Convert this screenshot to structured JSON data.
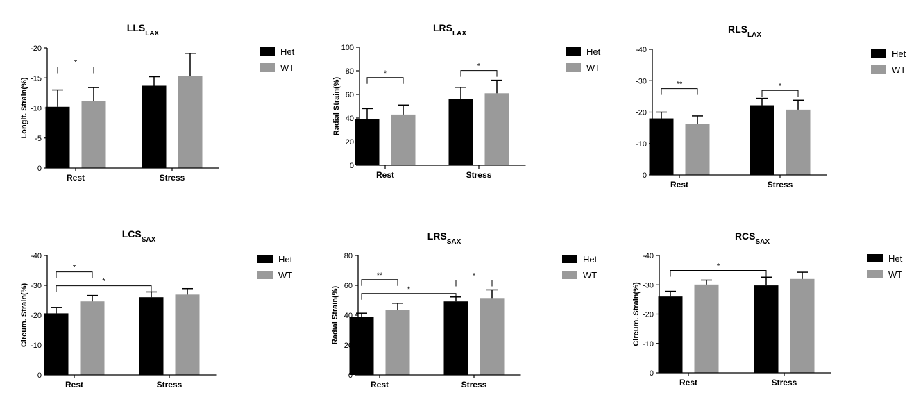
{
  "colors": {
    "het": "#000000",
    "wt": "#9a9a9a",
    "axis": "#000000"
  },
  "chart_data": [
    {
      "type": "bar",
      "title": "LLS",
      "title_sub": "LAX",
      "ylabel": "Longit. Strain(%)",
      "categories": [
        "Rest",
        "Stress"
      ],
      "ylim": [
        0,
        20
      ],
      "yticks": [
        0,
        5,
        10,
        15,
        20
      ],
      "tick_prefix": "-",
      "series": [
        {
          "name": "Het",
          "values": [
            10.2,
            13.7
          ],
          "errors": [
            2.8,
            1.5
          ]
        },
        {
          "name": "WT",
          "values": [
            11.2,
            15.3
          ],
          "errors": [
            2.2,
            3.8
          ]
        }
      ],
      "significance": [
        {
          "from": [
            0,
            0
          ],
          "to": [
            1,
            0
          ],
          "label": "*"
        }
      ]
    },
    {
      "type": "bar",
      "title": "LRS",
      "title_sub": "LAX",
      "ylabel": "Radial Strain(%)",
      "categories": [
        "Rest",
        "Stress"
      ],
      "ylim": [
        0,
        100
      ],
      "yticks": [
        0,
        20,
        40,
        60,
        80,
        100
      ],
      "tick_prefix": "",
      "series": [
        {
          "name": "Het",
          "values": [
            39,
            56
          ],
          "errors": [
            9,
            10
          ]
        },
        {
          "name": "WT",
          "values": [
            43,
            61
          ],
          "errors": [
            8,
            11
          ]
        }
      ],
      "significance": [
        {
          "from": [
            0,
            0
          ],
          "to": [
            1,
            0
          ],
          "label": "*"
        },
        {
          "from": [
            0,
            1
          ],
          "to": [
            1,
            1
          ],
          "label": "*"
        }
      ]
    },
    {
      "type": "bar",
      "title": "RLS",
      "title_sub": "LAX",
      "ylabel": "",
      "categories": [
        "Rest",
        "Stress"
      ],
      "ylim": [
        0,
        40
      ],
      "yticks": [
        0,
        10,
        20,
        30,
        40
      ],
      "tick_prefix": "-",
      "series": [
        {
          "name": "Het",
          "values": [
            18.0,
            22.2
          ],
          "errors": [
            2.0,
            2.2
          ]
        },
        {
          "name": "WT",
          "values": [
            16.3,
            20.8
          ],
          "errors": [
            2.5,
            3.0
          ]
        }
      ],
      "significance": [
        {
          "from": [
            0,
            0
          ],
          "to": [
            1,
            0
          ],
          "label": "**"
        },
        {
          "from": [
            0,
            1
          ],
          "to": [
            1,
            1
          ],
          "label": "*"
        }
      ]
    },
    {
      "type": "bar",
      "title": "LCS",
      "title_sub": "SAX",
      "ylabel": "Circum. Strain(%)",
      "categories": [
        "Rest",
        "Stress"
      ],
      "ylim": [
        0,
        40
      ],
      "yticks": [
        0,
        10,
        20,
        30,
        40
      ],
      "tick_prefix": "-",
      "series": [
        {
          "name": "Het",
          "values": [
            20.6,
            26.0
          ],
          "errors": [
            2.0,
            1.8
          ]
        },
        {
          "name": "WT",
          "values": [
            24.6,
            26.9
          ],
          "errors": [
            2.0,
            2.0
          ]
        }
      ],
      "significance": [
        {
          "from": [
            0,
            0
          ],
          "to": [
            0,
            1
          ],
          "label": "*"
        },
        {
          "from": [
            0,
            0
          ],
          "to": [
            1,
            0
          ],
          "label": "*"
        }
      ]
    },
    {
      "type": "bar",
      "title": "LRS",
      "title_sub": "SAX",
      "ylabel": "Radial Strain(%)",
      "categories": [
        "Rest",
        "Stress"
      ],
      "ylim": [
        0,
        80
      ],
      "yticks": [
        0,
        20,
        40,
        60,
        80
      ],
      "tick_prefix": "",
      "series": [
        {
          "name": "Het",
          "values": [
            38.8,
            49.2
          ],
          "errors": [
            2.5,
            3.0
          ]
        },
        {
          "name": "WT",
          "values": [
            43.5,
            51.5
          ],
          "errors": [
            4.5,
            5.5
          ]
        }
      ],
      "significance": [
        {
          "from": [
            0,
            0
          ],
          "to": [
            0,
            1
          ],
          "label": "*"
        },
        {
          "from": [
            0,
            1
          ],
          "to": [
            1,
            1
          ],
          "label": "*"
        },
        {
          "from": [
            0,
            0
          ],
          "to": [
            1,
            0
          ],
          "label": "**"
        }
      ]
    },
    {
      "type": "bar",
      "title": "RCS",
      "title_sub": "SAX",
      "ylabel": "Circum. Strain(%)",
      "categories": [
        "Rest",
        "Stress"
      ],
      "ylim": [
        0,
        40
      ],
      "yticks": [
        0,
        10,
        20,
        30,
        40
      ],
      "tick_prefix": "-",
      "series": [
        {
          "name": "Het",
          "values": [
            26.0,
            29.8
          ],
          "errors": [
            1.8,
            2.8
          ]
        },
        {
          "name": "WT",
          "values": [
            30.1,
            32.0
          ],
          "errors": [
            1.5,
            2.3
          ]
        }
      ],
      "significance": [
        {
          "from": [
            0,
            0
          ],
          "to": [
            0,
            1
          ],
          "label": "*"
        }
      ]
    }
  ]
}
